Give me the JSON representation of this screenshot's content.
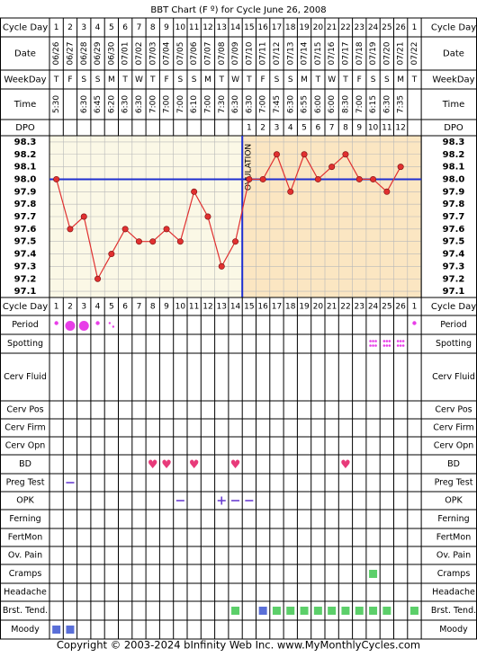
{
  "title": "BBT Chart (F º) for Cycle June 26, 2008",
  "copyright": "Copyright © 2003-2024 bInfinity Web Inc.",
  "site": "www.MyMonthlyCycles.com",
  "labels": {
    "cycle_day": "Cycle Day",
    "date": "Date",
    "weekday": "WeekDay",
    "time": "Time",
    "dpo": "DPO",
    "ovulation": "OVULATION"
  },
  "columns": {
    "cycle_day": [
      "1",
      "2",
      "3",
      "4",
      "5",
      "6",
      "7",
      "8",
      "9",
      "10",
      "11",
      "12",
      "13",
      "14",
      "15",
      "16",
      "17",
      "18",
      "19",
      "20",
      "21",
      "22",
      "23",
      "24",
      "25",
      "26",
      "1"
    ],
    "date": [
      "06/26",
      "06/27",
      "06/28",
      "06/29",
      "06/30",
      "07/01",
      "07/02",
      "07/03",
      "07/04",
      "07/05",
      "07/06",
      "07/07",
      "07/08",
      "07/09",
      "07/10",
      "07/11",
      "07/12",
      "07/13",
      "07/14",
      "07/15",
      "07/16",
      "07/17",
      "07/18",
      "07/19",
      "07/20",
      "07/21",
      "07/22"
    ],
    "weekday": [
      "T",
      "F",
      "S",
      "S",
      "M",
      "T",
      "W",
      "T",
      "F",
      "S",
      "S",
      "M",
      "T",
      "W",
      "T",
      "F",
      "S",
      "S",
      "M",
      "T",
      "W",
      "T",
      "F",
      "S",
      "S",
      "M",
      "T"
    ],
    "time": [
      "5:30",
      "",
      "6:30",
      "6:45",
      "6:20",
      "6:30",
      "6:30",
      "7:00",
      "7:00",
      "7:00",
      "6:10",
      "7:00",
      "7:30",
      "6:30",
      "6:30",
      "7:00",
      "7:45",
      "6:30",
      "6:55",
      "6:00",
      "6:00",
      "8:30",
      "7:00",
      "6:15",
      "6:30",
      "7:35",
      ""
    ],
    "dpo": [
      "",
      "",
      "",
      "",
      "",
      "",
      "",
      "",
      "",
      "",
      "",
      "",
      "",
      "",
      "1",
      "2",
      "3",
      "4",
      "5",
      "6",
      "7",
      "8",
      "9",
      "10",
      "11",
      "12",
      ""
    ]
  },
  "chart_data": {
    "type": "line",
    "title": "BBT Chart (F º) for Cycle June 26, 2008",
    "x": [
      1,
      2,
      3,
      4,
      5,
      6,
      7,
      8,
      9,
      10,
      11,
      12,
      13,
      14,
      15,
      16,
      17,
      18,
      19,
      20,
      21,
      22,
      23,
      24,
      25,
      26
    ],
    "values": [
      98.0,
      97.6,
      97.7,
      97.2,
      97.4,
      97.6,
      97.5,
      97.5,
      97.6,
      97.5,
      97.9,
      97.7,
      97.3,
      97.5,
      98.0,
      98.0,
      98.2,
      97.9,
      98.2,
      98.0,
      98.1,
      98.2,
      98.0,
      98.0,
      97.9,
      98.1
    ],
    "y_ticks": [
      "98.3",
      "98.2",
      "98.1",
      "98.0",
      "97.9",
      "97.8",
      "97.7",
      "97.6",
      "97.5",
      "97.4",
      "97.3",
      "97.2",
      "97.1"
    ],
    "ylim": [
      97.1,
      98.3
    ],
    "coverline": 98.0,
    "ovulation_day": 14,
    "colors": {
      "line": "#e03030",
      "coverline": "#1f2fd0",
      "pre_bg": "#fbf8e6",
      "post_bg": "#fbe6c2"
    }
  },
  "rows": [
    {
      "label": "Period",
      "marks": [
        {
          "day": 1,
          "type": "dot-s"
        },
        {
          "day": 2,
          "type": "dot-l"
        },
        {
          "day": 3,
          "type": "dot-l"
        },
        {
          "day": 4,
          "type": "dot-s"
        },
        {
          "day": 5,
          "type": "dots"
        },
        {
          "day": 27,
          "type": "dot-s"
        }
      ]
    },
    {
      "label": "Spotting",
      "marks": [
        {
          "day": 24,
          "type": "spot"
        },
        {
          "day": 25,
          "type": "spot"
        },
        {
          "day": 26,
          "type": "spot"
        }
      ]
    },
    {
      "label": "Cerv Fluid",
      "marks": []
    },
    {
      "label": "Cerv Pos",
      "marks": []
    },
    {
      "label": "Cerv Firm",
      "marks": []
    },
    {
      "label": "Cerv Opn",
      "marks": []
    },
    {
      "label": "BD",
      "marks": [
        {
          "day": 8,
          "type": "heart"
        },
        {
          "day": 9,
          "type": "heart"
        },
        {
          "day": 11,
          "type": "heart"
        },
        {
          "day": 14,
          "type": "heart"
        },
        {
          "day": 22,
          "type": "heart"
        }
      ]
    },
    {
      "label": "Preg Test",
      "marks": [
        {
          "day": 2,
          "type": "minus"
        }
      ]
    },
    {
      "label": "OPK",
      "marks": [
        {
          "day": 10,
          "type": "minus"
        },
        {
          "day": 13,
          "type": "plus"
        },
        {
          "day": 14,
          "type": "minus"
        },
        {
          "day": 15,
          "type": "minus"
        }
      ]
    },
    {
      "label": "Ferning",
      "marks": []
    },
    {
      "label": "FertMon",
      "marks": []
    },
    {
      "label": "Ov. Pain",
      "marks": []
    },
    {
      "label": "Cramps",
      "marks": [
        {
          "day": 24,
          "type": "sq-green"
        }
      ]
    },
    {
      "label": "Headache",
      "marks": []
    },
    {
      "label": "Brst. Tend.",
      "marks": [
        {
          "day": 14,
          "type": "sq-green"
        },
        {
          "day": 16,
          "type": "sq-blue"
        },
        {
          "day": 17,
          "type": "sq-green"
        },
        {
          "day": 18,
          "type": "sq-green"
        },
        {
          "day": 19,
          "type": "sq-green"
        },
        {
          "day": 20,
          "type": "sq-green"
        },
        {
          "day": 21,
          "type": "sq-green"
        },
        {
          "day": 22,
          "type": "sq-green"
        },
        {
          "day": 23,
          "type": "sq-green"
        },
        {
          "day": 24,
          "type": "sq-green"
        },
        {
          "day": 25,
          "type": "sq-green"
        },
        {
          "day": 27,
          "type": "sq-green"
        }
      ]
    },
    {
      "label": "Moody",
      "marks": [
        {
          "day": 1,
          "type": "sq-blue"
        },
        {
          "day": 2,
          "type": "sq-blue"
        }
      ]
    }
  ],
  "mark_colors": {
    "period": "#e83ee8",
    "heart": "#e83a7a",
    "line_mark": "#6a3fd0",
    "green": "#5ccf6a",
    "blue": "#5a6fd8"
  }
}
